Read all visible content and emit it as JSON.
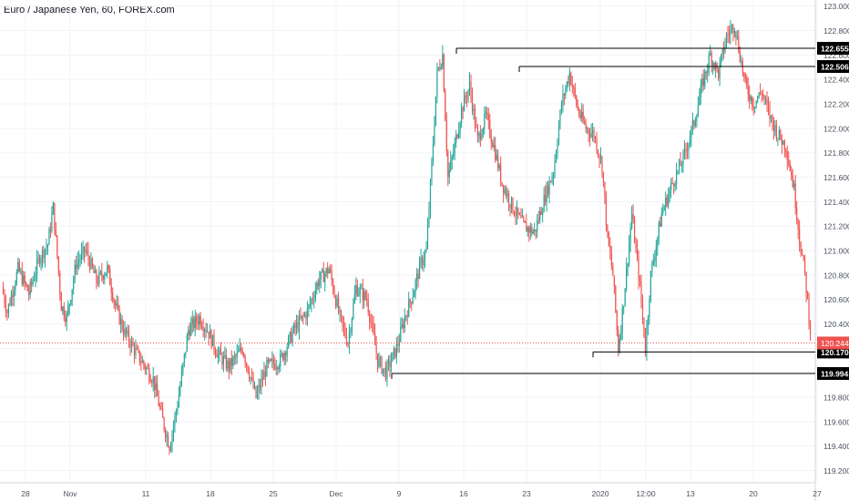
{
  "header": {
    "title": "Euro / Japanese Yen, 60, FOREX.com"
  },
  "colors": {
    "up": "#26a69a",
    "down": "#ef5350",
    "grid": "#f0f3fa",
    "axis_text": "#4c525e",
    "level_line": "#000000",
    "current_price": "#ef5350"
  },
  "chart_data": {
    "type": "candlestick",
    "title": "Euro / Japanese Yen, 60, FOREX.com",
    "ylim": [
      119.1,
      123.05
    ],
    "y_ticks": [
      "123.000",
      "122.800",
      "122.600",
      "122.400",
      "122.200",
      "122.000",
      "121.800",
      "121.600",
      "121.400",
      "121.200",
      "121.000",
      "120.800",
      "120.600",
      "120.400",
      "120.200",
      "120.000",
      "119.800",
      "119.600",
      "119.400",
      "119.200"
    ],
    "x_ticks": [
      "28",
      "Nov",
      "11",
      "18",
      "25",
      "Dec",
      "9",
      "16",
      "23",
      "2020",
      "12:00",
      "13",
      "20",
      "27"
    ],
    "grid": true,
    "close_path": [
      {
        "i": 0,
        "v": 120.7
      },
      {
        "i": 4,
        "v": 120.5
      },
      {
        "i": 12,
        "v": 120.85
      },
      {
        "i": 20,
        "v": 120.65
      },
      {
        "i": 28,
        "v": 120.95
      },
      {
        "i": 34,
        "v": 121.05
      },
      {
        "i": 38,
        "v": 121.35
      },
      {
        "i": 44,
        "v": 120.55
      },
      {
        "i": 48,
        "v": 120.45
      },
      {
        "i": 55,
        "v": 120.9
      },
      {
        "i": 62,
        "v": 121.0
      },
      {
        "i": 70,
        "v": 120.75
      },
      {
        "i": 78,
        "v": 120.85
      },
      {
        "i": 84,
        "v": 120.55
      },
      {
        "i": 90,
        "v": 120.35
      },
      {
        "i": 100,
        "v": 120.15
      },
      {
        "i": 112,
        "v": 119.95
      },
      {
        "i": 118,
        "v": 119.65
      },
      {
        "i": 124,
        "v": 119.4
      },
      {
        "i": 130,
        "v": 119.75
      },
      {
        "i": 138,
        "v": 120.35
      },
      {
        "i": 146,
        "v": 120.45
      },
      {
        "i": 152,
        "v": 120.35
      },
      {
        "i": 160,
        "v": 120.15
      },
      {
        "i": 168,
        "v": 120.05
      },
      {
        "i": 178,
        "v": 120.2
      },
      {
        "i": 188,
        "v": 119.8
      },
      {
        "i": 196,
        "v": 120.05
      },
      {
        "i": 206,
        "v": 120.1
      },
      {
        "i": 216,
        "v": 120.35
      },
      {
        "i": 226,
        "v": 120.5
      },
      {
        "i": 234,
        "v": 120.75
      },
      {
        "i": 242,
        "v": 120.85
      },
      {
        "i": 250,
        "v": 120.45
      },
      {
        "i": 256,
        "v": 120.25
      },
      {
        "i": 262,
        "v": 120.7
      },
      {
        "i": 270,
        "v": 120.6
      },
      {
        "i": 278,
        "v": 120.1
      },
      {
        "i": 284,
        "v": 120.0
      },
      {
        "i": 292,
        "v": 120.2
      },
      {
        "i": 298,
        "v": 120.45
      },
      {
        "i": 304,
        "v": 120.65
      },
      {
        "i": 310,
        "v": 120.9
      },
      {
        "i": 314,
        "v": 121.0
      },
      {
        "i": 318,
        "v": 121.7
      },
      {
        "i": 322,
        "v": 122.45
      },
      {
        "i": 326,
        "v": 122.6
      },
      {
        "i": 330,
        "v": 121.6
      },
      {
        "i": 334,
        "v": 121.8
      },
      {
        "i": 340,
        "v": 122.15
      },
      {
        "i": 346,
        "v": 122.35
      },
      {
        "i": 352,
        "v": 121.9
      },
      {
        "i": 358,
        "v": 122.1
      },
      {
        "i": 364,
        "v": 121.85
      },
      {
        "i": 370,
        "v": 121.55
      },
      {
        "i": 378,
        "v": 121.35
      },
      {
        "i": 386,
        "v": 121.2
      },
      {
        "i": 394,
        "v": 121.15
      },
      {
        "i": 402,
        "v": 121.45
      },
      {
        "i": 408,
        "v": 121.65
      },
      {
        "i": 414,
        "v": 122.2
      },
      {
        "i": 420,
        "v": 122.45
      },
      {
        "i": 426,
        "v": 122.15
      },
      {
        "i": 432,
        "v": 122.0
      },
      {
        "i": 438,
        "v": 121.95
      },
      {
        "i": 444,
        "v": 121.7
      },
      {
        "i": 448,
        "v": 121.1
      },
      {
        "i": 452,
        "v": 120.8
      },
      {
        "i": 456,
        "v": 120.2
      },
      {
        "i": 460,
        "v": 120.6
      },
      {
        "i": 466,
        "v": 121.3
      },
      {
        "i": 472,
        "v": 120.7
      },
      {
        "i": 476,
        "v": 120.2
      },
      {
        "i": 480,
        "v": 120.8
      },
      {
        "i": 488,
        "v": 121.3
      },
      {
        "i": 496,
        "v": 121.55
      },
      {
        "i": 504,
        "v": 121.75
      },
      {
        "i": 512,
        "v": 122.05
      },
      {
        "i": 518,
        "v": 122.35
      },
      {
        "i": 524,
        "v": 122.6
      },
      {
        "i": 530,
        "v": 122.45
      },
      {
        "i": 536,
        "v": 122.75
      },
      {
        "i": 542,
        "v": 122.85
      },
      {
        "i": 546,
        "v": 122.6
      },
      {
        "i": 550,
        "v": 122.35
      },
      {
        "i": 556,
        "v": 122.2
      },
      {
        "i": 562,
        "v": 122.3
      },
      {
        "i": 568,
        "v": 122.1
      },
      {
        "i": 574,
        "v": 121.95
      },
      {
        "i": 580,
        "v": 121.85
      },
      {
        "i": 586,
        "v": 121.5
      },
      {
        "i": 590,
        "v": 121.1
      },
      {
        "i": 594,
        "v": 120.8
      },
      {
        "i": 598,
        "v": 120.35
      }
    ],
    "levels": [
      {
        "label": "122.655",
        "value": 122.655,
        "start_x_tick": "16"
      },
      {
        "label": "122.506",
        "value": 122.506,
        "start_x_tick": "23"
      },
      {
        "label": "120.170",
        "value": 120.17,
        "start_x_tick": "2020"
      },
      {
        "label": "119.994",
        "value": 119.994,
        "start_x_tick": "9"
      }
    ],
    "current_price": {
      "label": "120.244",
      "value": 120.244
    }
  }
}
